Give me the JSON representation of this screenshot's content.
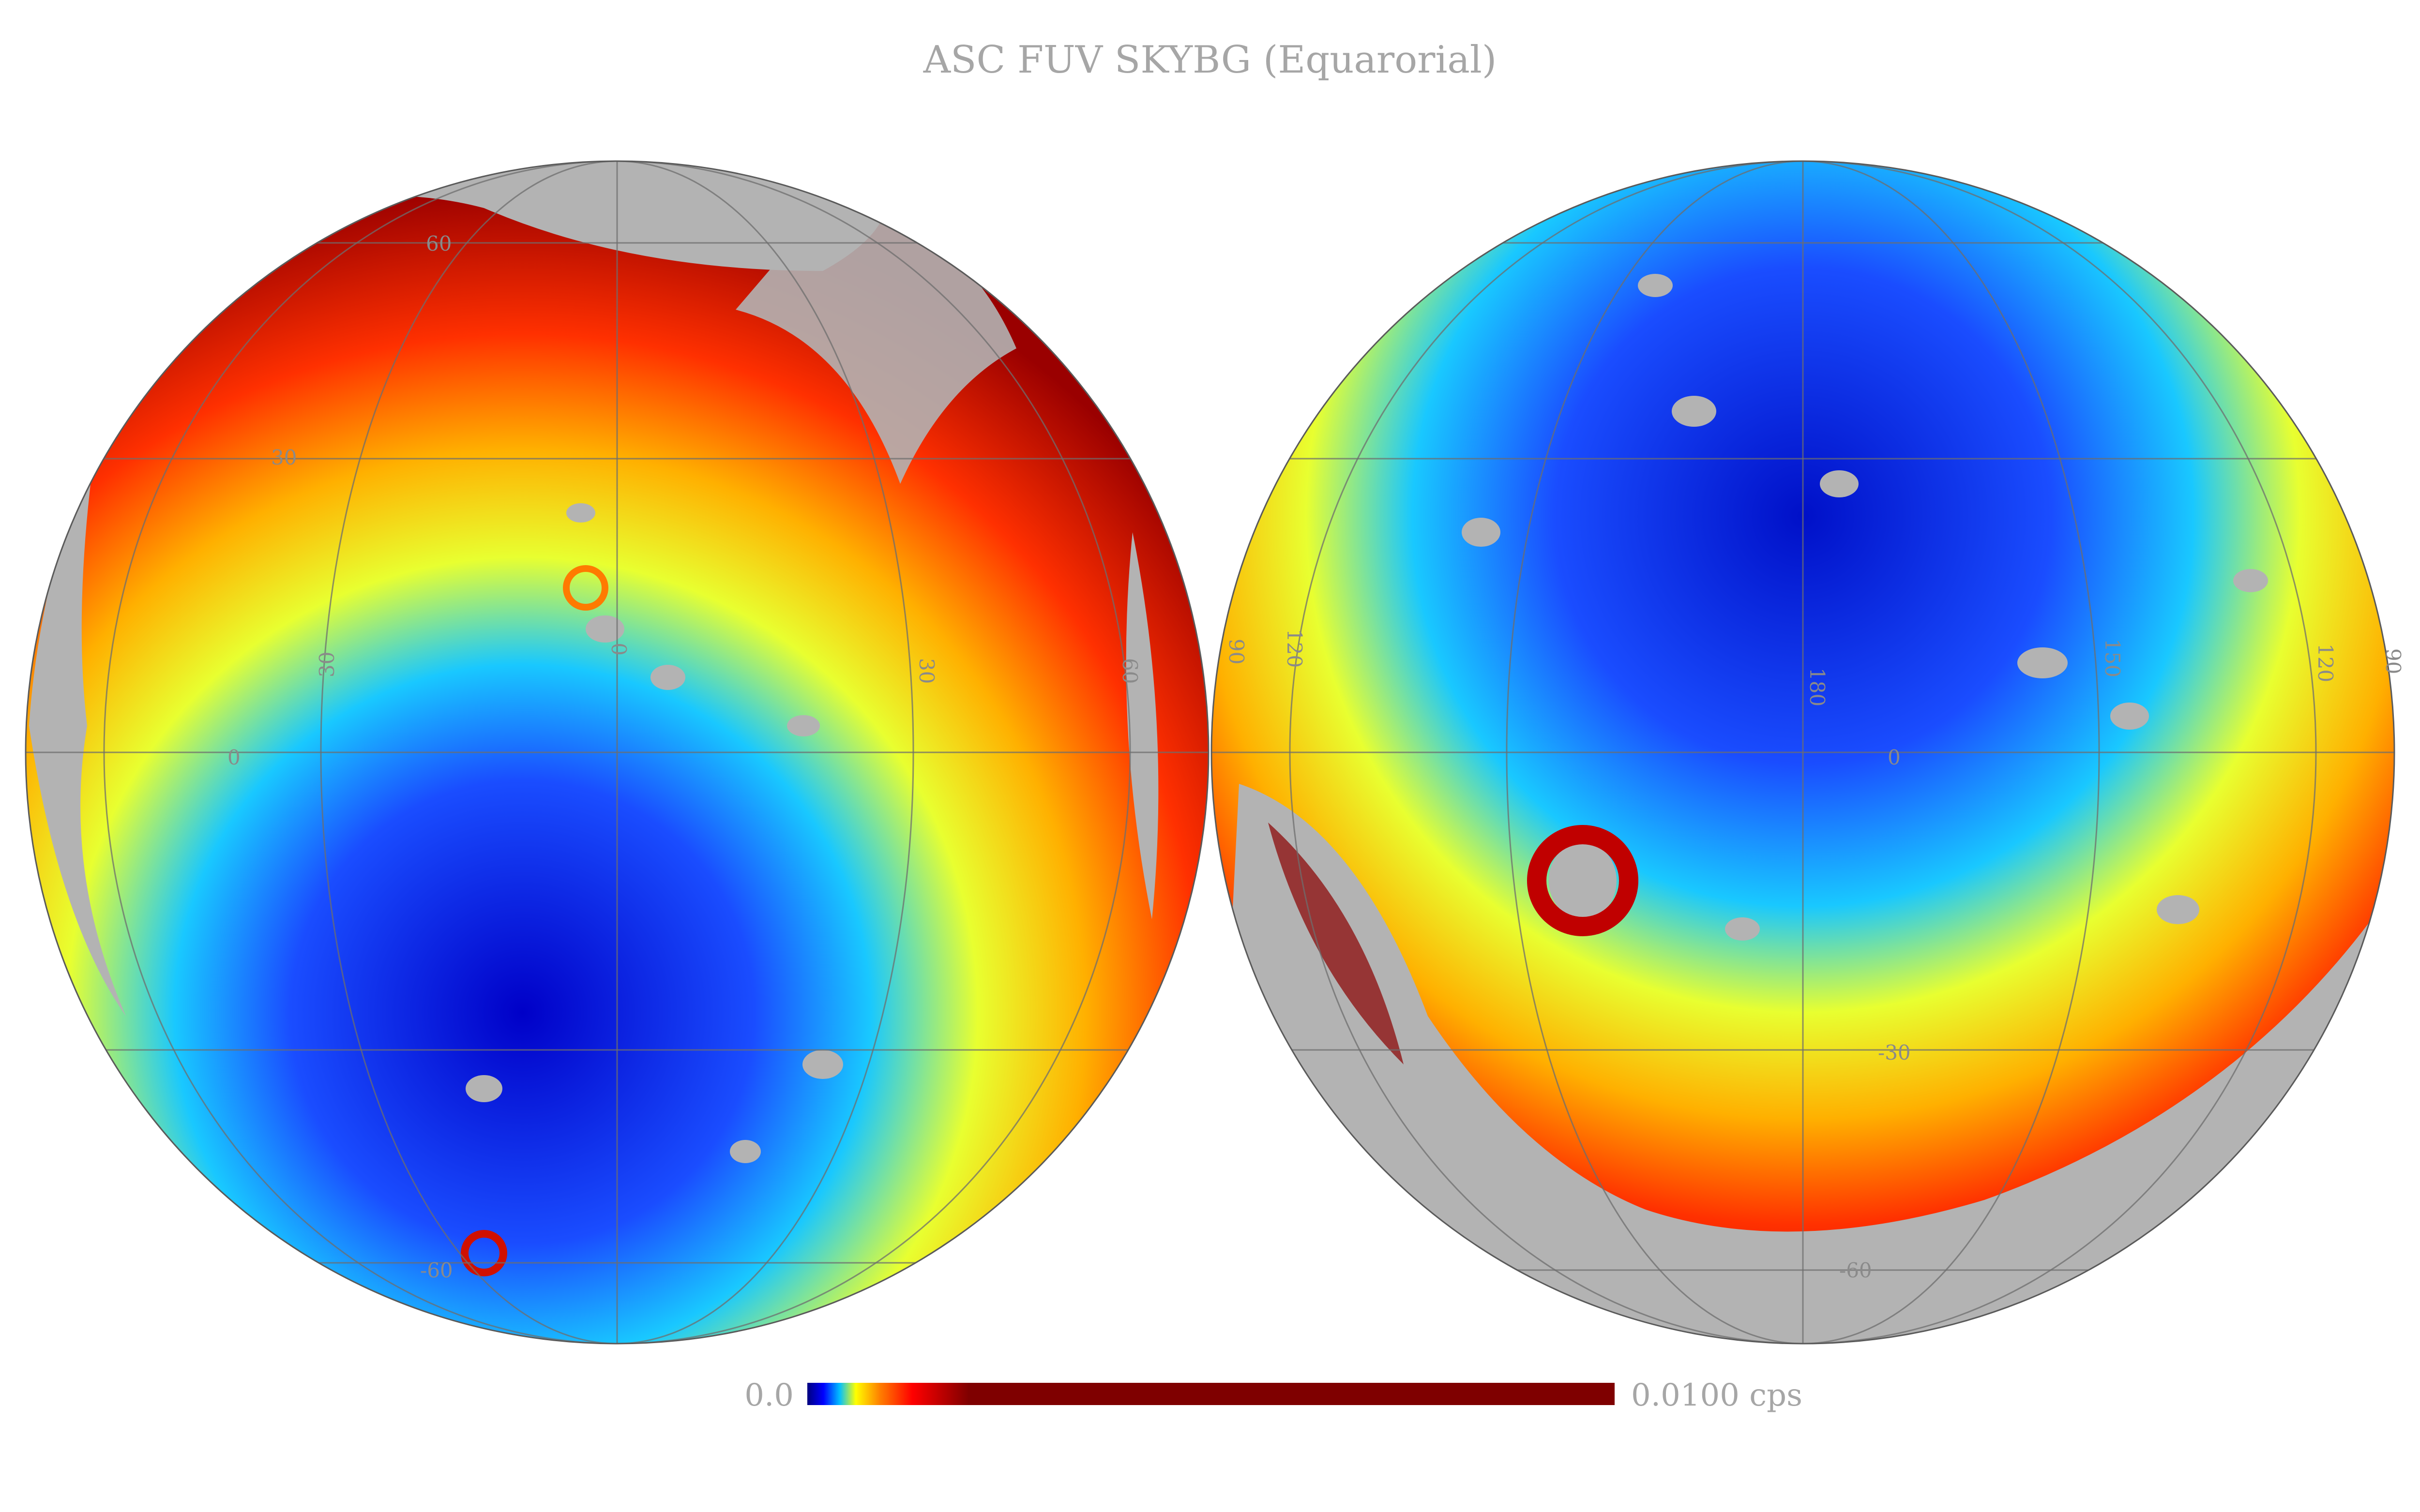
{
  "title": "ASC FUV SKYBG (Equarorial)",
  "colorbar": {
    "min_label": "0.0",
    "max_label": "0.0100 cps",
    "stops": [
      "#00007f",
      "#0000ff",
      "#00bfff",
      "#ffff00",
      "#ff7f00",
      "#ff0000",
      "#7f0000"
    ],
    "masked_color": "#b3b3b3"
  },
  "left_hemisphere": {
    "grid_labels": {
      "lat_top": "60",
      "lat_mid": "30",
      "lat_zero": "0",
      "lat_bottom": "-60",
      "ra_0": "0",
      "ra_30": "30",
      "ra_60": "60",
      "ra_30_left": "30"
    }
  },
  "right_hemisphere": {
    "grid_labels": {
      "ra_90_left": "90",
      "ra_120_left": "120",
      "ra_180": "180",
      "ra_150": "150",
      "ra_120_right": "120",
      "ra_90_right": "90",
      "lat_zero": "0",
      "lat_m30": "-30",
      "lat_m60": "-60"
    }
  }
}
